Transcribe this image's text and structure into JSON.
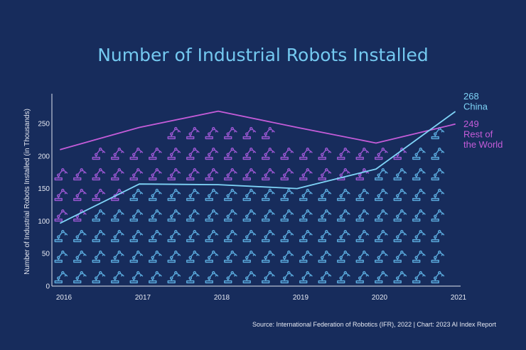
{
  "chart_data": {
    "type": "line",
    "title": "Number of Industrial Robots Installed",
    "xlabel": "",
    "ylabel": "Number of Industrial Robots Installed (in Thousands)",
    "x": [
      "2016",
      "2017",
      "2018",
      "2019",
      "2020",
      "2021"
    ],
    "ylim": [
      0,
      290
    ],
    "yticks": [
      0,
      50,
      100,
      150,
      200,
      250
    ],
    "grid": false,
    "series": [
      {
        "name": "China",
        "values": [
          97,
          157,
          156,
          150,
          180,
          268
        ],
        "color": "#7fd4f7",
        "end_value": "268",
        "end_label": [
          "China"
        ]
      },
      {
        "name": "Rest of the World",
        "values": [
          210,
          244,
          269,
          244,
          220,
          249
        ],
        "color": "#c55cd9",
        "end_value": "249",
        "end_label": [
          "Rest of",
          "the World"
        ]
      }
    ],
    "decoration": "robot-arm pictogram fill under each line"
  },
  "footer": {
    "source": "Source: International Federation of Robotics (IFR), 2022 | Chart: 2023 AI Index Report"
  },
  "colors": {
    "background": "#172c5c",
    "text": "#e6e9f2",
    "title": "#74c9f0",
    "axis": "#dfe3ee",
    "china_icon": "#5aa9dc",
    "row_icon": "#9a57d2"
  }
}
